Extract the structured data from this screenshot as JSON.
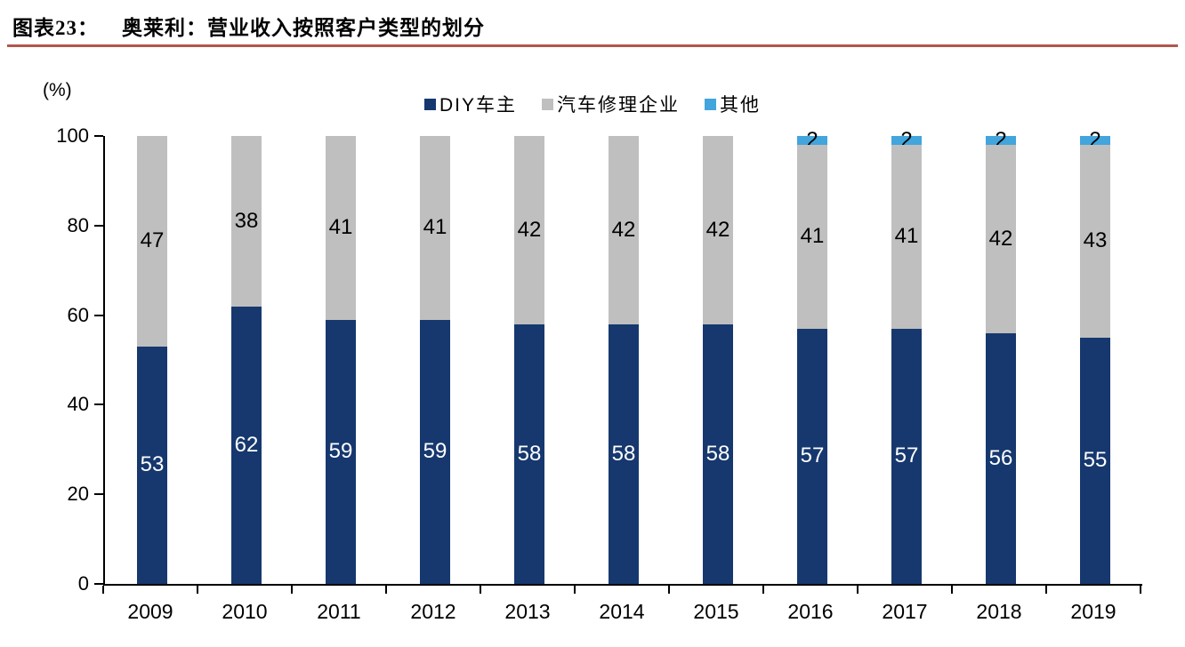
{
  "header": {
    "label": "图表23：",
    "title": "奥莱利：营业收入按照客户类型的划分",
    "divider_color": "#B1574D"
  },
  "chart_data": {
    "type": "bar",
    "stacked": true,
    "title": "奥莱利：营业收入按照客户类型的划分",
    "xlabel": "",
    "ylabel": "(%)",
    "ylim": [
      0,
      100
    ],
    "yticks": [
      0,
      20,
      40,
      60,
      80,
      100
    ],
    "grid": false,
    "legend_position": "top-center",
    "categories": [
      "2009",
      "2010",
      "2011",
      "2012",
      "2013",
      "2014",
      "2015",
      "2016",
      "2017",
      "2018",
      "2019"
    ],
    "series": [
      {
        "name": "DIY车主",
        "color": "#16386E",
        "label_color": "#FFFFFF",
        "values": [
          53,
          62,
          59,
          59,
          58,
          58,
          58,
          57,
          57,
          56,
          55
        ]
      },
      {
        "name": "汽车修理企业",
        "color": "#BFBFBF",
        "label_color": "#000000",
        "values": [
          47,
          38,
          41,
          41,
          42,
          42,
          42,
          41,
          41,
          42,
          43
        ]
      },
      {
        "name": "其他",
        "color": "#42A5DC",
        "label_color": "#000000",
        "values": [
          null,
          null,
          null,
          null,
          null,
          null,
          null,
          2,
          2,
          2,
          2
        ]
      }
    ],
    "axis_color": "#000000",
    "tick_label_color": "#000000"
  }
}
